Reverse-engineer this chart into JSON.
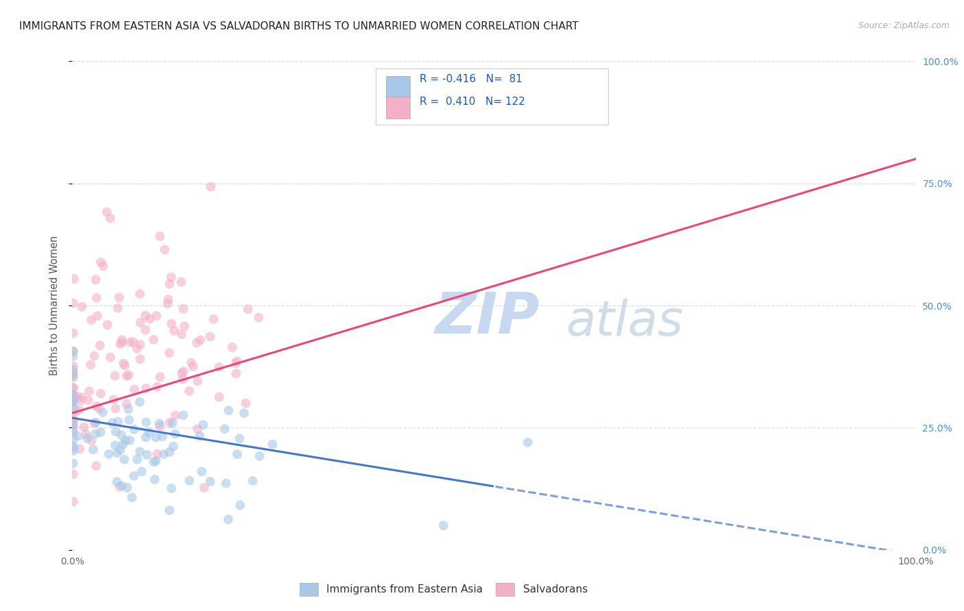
{
  "title": "IMMIGRANTS FROM EASTERN ASIA VS SALVADORAN BIRTHS TO UNMARRIED WOMEN CORRELATION CHART",
  "source": "Source: ZipAtlas.com",
  "ylabel": "Births to Unmarried Women",
  "right_yticklabels": [
    "0.0%",
    "25.0%",
    "50.0%",
    "75.0%",
    "100.0%"
  ],
  "legend1_label": "Immigrants from Eastern Asia",
  "legend2_label": "Salvadorans",
  "R_blue": -0.416,
  "N_blue": 81,
  "R_pink": 0.41,
  "N_pink": 122,
  "blue_scatter_color": "#a8c8e8",
  "pink_scatter_color": "#f4b0c8",
  "blue_line_color": "#4477cc",
  "pink_line_color": "#ee4477",
  "watermark_zip": "ZIP",
  "watermark_atlas": "atlas",
  "watermark_color_zip": "#c8d8f0",
  "watermark_color_atlas": "#d0dce8",
  "title_fontsize": 11,
  "source_fontsize": 9,
  "watermark_fontsize": 60,
  "background_color": "#ffffff",
  "grid_color": "#dddddd",
  "scatter_size": 100,
  "scatter_alpha": 0.6,
  "blue_line_intercept": 0.27,
  "blue_line_slope": -0.28,
  "pink_line_intercept": 0.28,
  "pink_line_slope": 0.52
}
